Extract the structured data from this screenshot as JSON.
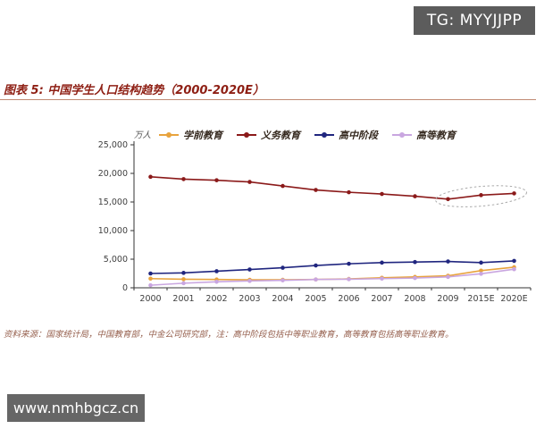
{
  "watermarks": {
    "tg_badge": "TG: MYYJJPP",
    "site_badge": "www.nmhbgcz.cn"
  },
  "figure": {
    "title": "图表 5:  中国学生人口结构趋势（2000-2020E）",
    "unit_label": "万人",
    "source_note": "资料来源：国家统计局，中国教育部，中金公司研究部，注：高中阶段包括中等职业教育，高等教育包括高等职业教育。"
  },
  "chart_data": {
    "type": "line",
    "title": "中国学生人口结构趋势（2000-2020E）",
    "ylabel": "万人",
    "categories": [
      "2000",
      "2001",
      "2002",
      "2003",
      "2004",
      "2005",
      "2006",
      "2007",
      "2008",
      "2009",
      "2015E",
      "2020E"
    ],
    "series": [
      {
        "name": "学前教育",
        "color": "#e8a33d",
        "values": [
          1600,
          1500,
          1450,
          1400,
          1400,
          1450,
          1550,
          1750,
          1900,
          2100,
          3000,
          3600
        ]
      },
      {
        "name": "义务教育",
        "color": "#8b1a1a",
        "values": [
          19400,
          19000,
          18800,
          18500,
          17800,
          17100,
          16700,
          16400,
          16000,
          15500,
          16200,
          16500
        ]
      },
      {
        "name": "高中阶段",
        "color": "#20267f",
        "values": [
          2500,
          2600,
          2900,
          3200,
          3500,
          3900,
          4200,
          4400,
          4500,
          4600,
          4400,
          4700
        ]
      },
      {
        "name": "高等教育",
        "color": "#c9a6e0",
        "values": [
          450,
          800,
          1050,
          1200,
          1300,
          1450,
          1500,
          1600,
          1700,
          1900,
          2450,
          3250
        ]
      }
    ],
    "ylim": [
      0,
      25000
    ],
    "ytick_step": 5000,
    "ytick_labels": [
      "0",
      "5,000",
      "10,000",
      "15,000",
      "20,000",
      "25,000"
    ],
    "legend_position": "top",
    "grid": false,
    "annotation": {
      "type": "ellipse",
      "series": "义务教育",
      "highlight_categories": [
        "2009",
        "2015E",
        "2020E"
      ],
      "stroke": "#aaaaaa"
    }
  }
}
